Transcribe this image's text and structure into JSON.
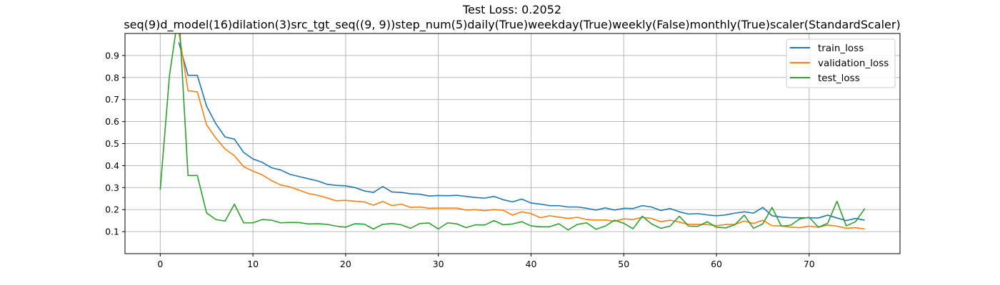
{
  "figure": {
    "title_line1": "Test Loss: 0.2052",
    "title_line2": "seq(9)d_model(16)dilation(3)src_tgt_seq((9, 9))step_num(5)daily(True)weekday(True)weekly(False)monthly(True)scaler(StandardScaler)"
  },
  "chart_data": {
    "type": "line",
    "title": "Test Loss: 0.2052",
    "subtitle": "seq(9)d_model(16)dilation(3)src_tgt_seq((9, 9))step_num(5)daily(True)weekday(True)weekly(False)monthly(True)scaler(StandardScaler)",
    "xlabel": "",
    "ylabel": "",
    "xlim": [
      -3.8,
      79.8
    ],
    "ylim": [
      0.0,
      1.0
    ],
    "xticks": [
      0,
      10,
      20,
      30,
      40,
      50,
      60,
      70
    ],
    "yticks": [
      0.1,
      0.2,
      0.3,
      0.4,
      0.5,
      0.6,
      0.7,
      0.8,
      0.9
    ],
    "grid": true,
    "legend_position": "top-right",
    "colors": {
      "train_loss": "#1f77b4",
      "validation_loss": "#ff7f0e",
      "test_loss": "#2ca02c",
      "grid": "#b0b0b0",
      "axes": "#000000"
    },
    "series": [
      {
        "name": "train_loss",
        "x": [
          0,
          1,
          2,
          3,
          4,
          5,
          6,
          7,
          8,
          9,
          10,
          11,
          12,
          13,
          14,
          15,
          16,
          17,
          18,
          19,
          20,
          21,
          22,
          23,
          24,
          25,
          26,
          27,
          28,
          29,
          30,
          31,
          32,
          33,
          34,
          35,
          36,
          37,
          38,
          39,
          40,
          41,
          42,
          43,
          44,
          45,
          46,
          47,
          48,
          49,
          50,
          51,
          52,
          53,
          54,
          55,
          56,
          57,
          58,
          59,
          60,
          61,
          62,
          63,
          64,
          65,
          66,
          67,
          68,
          69,
          70,
          71,
          72,
          73,
          74,
          75,
          76
        ],
        "values": [
          null,
          null,
          0.96,
          0.81,
          0.81,
          0.67,
          0.59,
          0.53,
          0.52,
          0.46,
          0.43,
          0.415,
          0.39,
          0.38,
          0.36,
          0.35,
          0.34,
          0.33,
          0.315,
          0.31,
          0.308,
          0.3,
          0.285,
          0.278,
          0.305,
          0.28,
          0.278,
          0.272,
          0.27,
          0.262,
          0.264,
          0.263,
          0.265,
          0.26,
          0.255,
          0.252,
          0.26,
          0.245,
          0.235,
          0.248,
          0.23,
          0.225,
          0.218,
          0.218,
          0.212,
          0.212,
          0.206,
          0.198,
          0.208,
          0.198,
          0.206,
          0.205,
          0.218,
          0.212,
          0.196,
          0.205,
          0.19,
          0.18,
          0.182,
          0.176,
          0.172,
          0.176,
          0.184,
          0.19,
          0.184,
          0.21,
          0.172,
          0.166,
          0.163,
          0.163,
          0.163,
          0.162,
          0.175,
          0.162,
          0.15,
          0.16,
          0.152
        ]
      },
      {
        "name": "validation_loss",
        "x": [
          0,
          1,
          2,
          3,
          4,
          5,
          6,
          7,
          8,
          9,
          10,
          11,
          12,
          13,
          14,
          15,
          16,
          17,
          18,
          19,
          20,
          21,
          22,
          23,
          24,
          25,
          26,
          27,
          28,
          29,
          30,
          31,
          32,
          33,
          34,
          35,
          36,
          37,
          38,
          39,
          40,
          41,
          42,
          43,
          44,
          45,
          46,
          47,
          48,
          49,
          50,
          51,
          52,
          53,
          54,
          55,
          56,
          57,
          58,
          59,
          60,
          61,
          62,
          63,
          64,
          65,
          66,
          67,
          68,
          69,
          70,
          71,
          72,
          73,
          74,
          75,
          76
        ],
        "values": [
          null,
          null,
          1.01,
          0.74,
          0.735,
          0.585,
          0.525,
          0.475,
          0.445,
          0.395,
          0.375,
          0.358,
          0.332,
          0.312,
          0.303,
          0.288,
          0.273,
          0.265,
          0.253,
          0.24,
          0.242,
          0.238,
          0.235,
          0.22,
          0.237,
          0.218,
          0.225,
          0.21,
          0.212,
          0.206,
          0.207,
          0.207,
          0.207,
          0.198,
          0.2,
          0.195,
          0.2,
          0.197,
          0.175,
          0.19,
          0.182,
          0.163,
          0.172,
          0.166,
          0.16,
          0.165,
          0.155,
          0.152,
          0.153,
          0.147,
          0.158,
          0.155,
          0.165,
          0.16,
          0.145,
          0.152,
          0.143,
          0.133,
          0.133,
          0.132,
          0.127,
          0.132,
          0.133,
          0.148,
          0.137,
          0.152,
          0.127,
          0.126,
          0.12,
          0.118,
          0.125,
          0.12,
          0.13,
          0.125,
          0.115,
          0.118,
          0.112
        ]
      },
      {
        "name": "test_loss",
        "x": [
          0,
          1,
          2,
          3,
          4,
          5,
          6,
          7,
          8,
          9,
          10,
          11,
          12,
          13,
          14,
          15,
          16,
          17,
          18,
          19,
          20,
          21,
          22,
          23,
          24,
          25,
          26,
          27,
          28,
          29,
          30,
          31,
          32,
          33,
          34,
          35,
          36,
          37,
          38,
          39,
          40,
          41,
          42,
          43,
          44,
          45,
          46,
          47,
          48,
          49,
          50,
          51,
          52,
          53,
          54,
          55,
          56,
          57,
          58,
          59,
          60,
          61,
          62,
          63,
          64,
          65,
          66,
          67,
          68,
          69,
          70,
          71,
          72,
          73,
          74,
          75,
          76
        ],
        "values": [
          0.29,
          0.81,
          1.1,
          0.355,
          0.355,
          0.185,
          0.155,
          0.148,
          0.225,
          0.14,
          0.14,
          0.155,
          0.152,
          0.14,
          0.142,
          0.141,
          0.135,
          0.136,
          0.133,
          0.125,
          0.12,
          0.136,
          0.134,
          0.112,
          0.133,
          0.137,
          0.131,
          0.115,
          0.137,
          0.139,
          0.112,
          0.14,
          0.135,
          0.118,
          0.131,
          0.13,
          0.15,
          0.131,
          0.135,
          0.145,
          0.126,
          0.122,
          0.122,
          0.136,
          0.108,
          0.133,
          0.14,
          0.111,
          0.125,
          0.152,
          0.138,
          0.113,
          0.17,
          0.135,
          0.115,
          0.125,
          0.17,
          0.125,
          0.124,
          0.145,
          0.12,
          0.117,
          0.132,
          0.175,
          0.115,
          0.135,
          0.21,
          0.125,
          0.129,
          0.158,
          0.165,
          0.12,
          0.138,
          0.238,
          0.126,
          0.145,
          0.205
        ]
      }
    ]
  }
}
